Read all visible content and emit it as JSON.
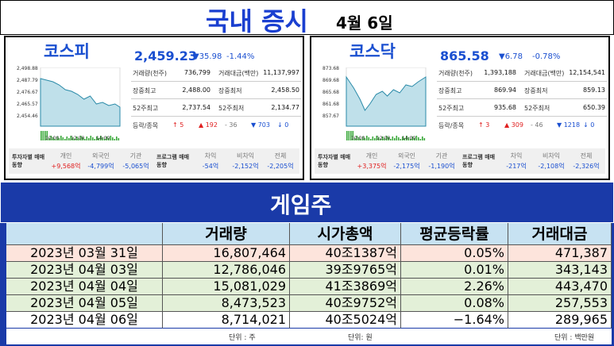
{
  "header": {
    "title": "국내 증시",
    "date": "4월 6일"
  },
  "markets": [
    {
      "name": "코스피",
      "index": "2,459.23",
      "change": "▼35.98",
      "rate": "-1.44%",
      "chart": {
        "yticks": [
          "2,498.88",
          "2,487.79",
          "2,476.67",
          "2,465.57",
          "2,454.46"
        ],
        "xticks": [
          "10:00",
          "12:00",
          "14:00"
        ]
      },
      "stats": [
        [
          "거래량(천주)",
          "736,799",
          "거래대금(백만)",
          "11,137,997"
        ],
        [
          "장중최고",
          "2,488.00",
          "장중최저",
          "2,458.50"
        ],
        [
          "52주최고",
          "2,737.54",
          "52주최저",
          "2,134.77"
        ]
      ],
      "breadth_label": "등락/종목",
      "breadth": [
        "↑ 5",
        "▲ 192",
        "- 36",
        "▼ 703",
        "↓ 0"
      ],
      "investor": {
        "label": "투자자별 매매동향",
        "items": [
          [
            "개인",
            "+9,568억"
          ],
          [
            "외국인",
            "-4,799억"
          ],
          [
            "기관",
            "-5,065억"
          ]
        ]
      },
      "program": {
        "label": "프로그램 매매동향",
        "items": [
          [
            "차익",
            "-54억"
          ],
          [
            "비차익",
            "-2,152억"
          ],
          [
            "전체",
            "-2,205억"
          ]
        ]
      }
    },
    {
      "name": "코스닥",
      "index": "865.58",
      "change": "▼6.78",
      "rate": "-0.78%",
      "chart": {
        "yticks": [
          "873.68",
          "869.68",
          "865.68",
          "861.68",
          "857.67"
        ],
        "xticks": [
          "10:00",
          "12:00",
          "14:00"
        ]
      },
      "stats": [
        [
          "거래량(천주)",
          "1,393,188",
          "거래대금(백만)",
          "12,154,541"
        ],
        [
          "장중최고",
          "869.94",
          "장중최저",
          "859.13"
        ],
        [
          "52주최고",
          "935.68",
          "52주최저",
          "650.39"
        ]
      ],
      "breadth_label": "등락/종목",
      "breadth": [
        "↑ 3",
        "▲ 309",
        "- 46",
        "▼ 1218",
        "↓ 0"
      ],
      "investor": {
        "label": "투자자별 매매동향",
        "items": [
          [
            "개인",
            "+3,375억"
          ],
          [
            "외국인",
            "-2,175억"
          ],
          [
            "기관",
            "-1,190억"
          ]
        ]
      },
      "program": {
        "label": "프로그램 매매동향",
        "items": [
          [
            "차익",
            "-217억"
          ],
          [
            "비차익",
            "-2,108억"
          ],
          [
            "전체",
            "-2,326억"
          ]
        ]
      }
    }
  ],
  "game": {
    "title": "게임주",
    "columns": [
      "거래량",
      "시가총액",
      "평균등락률",
      "거래대금"
    ],
    "rows": [
      [
        "2023년 03월 31일",
        "16,807,464",
        "40조1387억",
        "0.05%",
        "471,387"
      ],
      [
        "2023년 04월 03일",
        "12,786,046",
        "39조9765억",
        "0.01%",
        "343,143"
      ],
      [
        "2023년 04월 04일",
        "15,081,029",
        "41조3869억",
        "2.26%",
        "443,470"
      ],
      [
        "2023년 04월 05일",
        "8,473,523",
        "40조9752억",
        "0.08%",
        "257,553"
      ],
      [
        "2023년 04월 06일",
        "8,714,021",
        "40조5024억",
        "−1.64%",
        "289,965"
      ]
    ],
    "units": [
      "단위 : 주",
      "단위: 원",
      "단위 : 백만원"
    ]
  }
}
